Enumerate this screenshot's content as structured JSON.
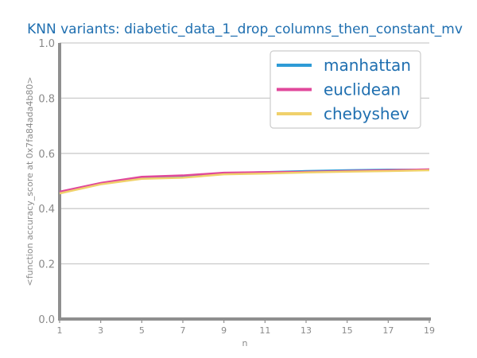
{
  "chart_data": {
    "type": "line",
    "title": "KNN variants: diabetic_data_1_drop_columns_then_constant_mv",
    "xlabel": "n",
    "ylabel": "<function accuracy_score at 0x7fa84ada4b80>",
    "x": [
      1,
      3,
      5,
      7,
      9,
      11,
      13,
      15,
      17,
      19
    ],
    "xticks": [
      "1",
      "3",
      "5",
      "7",
      "9",
      "11",
      "13",
      "15",
      "17",
      "19"
    ],
    "xlim": [
      1,
      19
    ],
    "ylim": [
      0.0,
      1.0
    ],
    "yticks": [
      "0.0",
      "0.2",
      "0.4",
      "0.6",
      "0.8",
      "1.0"
    ],
    "grid": "horizontal",
    "legend_position": "top-right",
    "series": [
      {
        "name": "manhattan",
        "color": "#2e9bd6",
        "values": [
          0.46,
          0.492,
          0.513,
          0.518,
          0.528,
          0.532,
          0.536,
          0.539,
          0.541,
          0.541
        ]
      },
      {
        "name": "euclidean",
        "color": "#e0489b",
        "values": [
          0.461,
          0.493,
          0.515,
          0.52,
          0.53,
          0.532,
          0.533,
          0.536,
          0.539,
          0.542
        ]
      },
      {
        "name": "chebyshev",
        "color": "#f0d16b",
        "values": [
          0.455,
          0.488,
          0.508,
          0.512,
          0.524,
          0.527,
          0.531,
          0.534,
          0.536,
          0.539
        ]
      }
    ]
  }
}
